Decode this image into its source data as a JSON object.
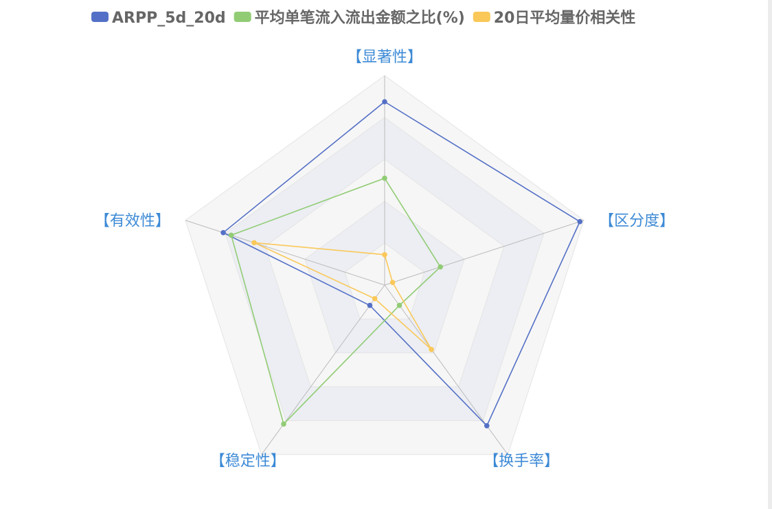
{
  "chart_data": {
    "type": "radar",
    "legend_position": "top",
    "indicators": [
      "【显著性】",
      "【区分度】",
      "【换手率】",
      "【稳定性】",
      "【有效性】"
    ],
    "range": [
      0,
      1
    ],
    "split_number": 5,
    "series": [
      {
        "name": "ARPP_5d_20d",
        "color": "#5470c6",
        "values": [
          0.875,
          0.98,
          0.83,
          0.12,
          0.81
        ]
      },
      {
        "name": "平均单笔流入流出金额之比(%)",
        "color": "#91cc75",
        "values": [
          0.51,
          0.28,
          0.12,
          0.82,
          0.77
        ]
      },
      {
        "name": "20日平均量价相关性",
        "color": "#fac858",
        "values": [
          0.145,
          0.04,
          0.38,
          0.08,
          0.655
        ]
      }
    ]
  }
}
